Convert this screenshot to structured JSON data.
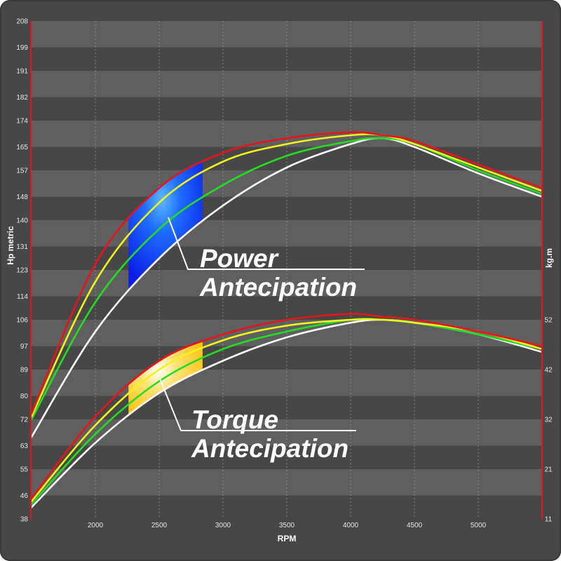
{
  "colors": {
    "frame_bg": "#474747",
    "band_light": "#5f5f5f",
    "band_dark": "#474747",
    "axis_red": "#e8141c",
    "grid": "#9a9a9a",
    "white": "#ffffff",
    "green": "#22dd22",
    "yellow": "#f2f21c",
    "red": "#e8141c",
    "power_fill": "#1f3fff",
    "torque_fill": "#ffcc1a"
  },
  "chart_data": {
    "type": "line",
    "title": "",
    "xlabel": "RPM",
    "ylabel_left": "Hp metric",
    "ylabel_right": "kg.m",
    "xlim": [
      1500,
      5500
    ],
    "ylim_left": [
      38,
      208
    ],
    "x_ticks": [
      2000,
      2500,
      3000,
      3500,
      4000,
      4500,
      5000
    ],
    "y_left_ticks": [
      "38",
      "46",
      "55",
      "63",
      "72",
      "80",
      "89",
      "97",
      "106",
      "114",
      "123",
      "131",
      "140",
      "148",
      "157",
      "165",
      "174",
      "182",
      "191",
      "199",
      "208"
    ],
    "y_right_ticks": [
      "11",
      "21",
      "32",
      "42",
      "52"
    ],
    "y_right_positions_hp": [
      38,
      55,
      72,
      89,
      106
    ],
    "grid": "vertical dashed lines, horizontal alternating bands",
    "curve_groups": [
      {
        "name": "power",
        "series": [
          {
            "color": "white",
            "x": [
              1500,
              2000,
              2500,
              3000,
              3500,
              4000,
              4250,
              4500,
              5000,
              5500
            ],
            "y": [
              66,
              102,
              127,
              145,
              158,
              166,
              168,
              165,
              156,
              148
            ]
          },
          {
            "color": "green",
            "x": [
              1500,
              2000,
              2500,
              3000,
              3500,
              4000,
              4250,
              4500,
              5000,
              5500
            ],
            "y": [
              72,
              112,
              137,
              152,
              162,
              167,
              168,
              166,
              157,
              149
            ]
          },
          {
            "color": "yellow",
            "x": [
              1500,
              2000,
              2500,
              3000,
              3500,
              4000,
              4250,
              4500,
              5000,
              5500
            ],
            "y": [
              73,
              119,
              146,
              160,
              166,
              169,
              169,
              166,
              158,
              150
            ]
          },
          {
            "color": "red",
            "x": [
              1500,
              2000,
              2500,
              3000,
              3500,
              4000,
              4250,
              4500,
              5000,
              5500
            ],
            "y": [
              74,
              125,
              151,
              163,
              168,
              170,
              169,
              167,
              159,
              151
            ]
          }
        ]
      },
      {
        "name": "torque",
        "series": [
          {
            "color": "white",
            "x": [
              1500,
              2000,
              2500,
              3000,
              3500,
              4000,
              4250,
              4500,
              5000,
              5500
            ],
            "y": [
              42,
              64,
              81,
              92,
              100,
              105,
              106,
              105,
              101,
              95
            ]
          },
          {
            "color": "green",
            "x": [
              1500,
              2000,
              2500,
              3000,
              3500,
              4000,
              4250,
              4500,
              5000,
              5500
            ],
            "y": [
              43,
              67,
              85,
              96,
              102,
              106,
              106,
              105,
              101,
              96
            ]
          },
          {
            "color": "yellow",
            "x": [
              1500,
              2000,
              2500,
              3000,
              3500,
              4000,
              4250,
              4500,
              5000,
              5500
            ],
            "y": [
              44,
              70,
              89,
              99,
              104,
              106,
              106,
              105,
              102,
              96
            ]
          },
          {
            "color": "red",
            "x": [
              1500,
              2000,
              2500,
              3000,
              3500,
              4000,
              4250,
              4500,
              5000,
              5500
            ],
            "y": [
              45,
              73,
              92,
              101,
              106,
              108,
              107,
              106,
              102,
              97
            ]
          }
        ]
      }
    ],
    "highlight_regions": [
      {
        "group": "power",
        "rpm_range": [
          2260,
          2840
        ],
        "between": [
          "white",
          "red"
        ]
      },
      {
        "group": "torque",
        "rpm_range": [
          2260,
          2840
        ],
        "between": [
          "white",
          "red"
        ]
      }
    ],
    "annotations": [
      {
        "lines": [
          "Power",
          "Antecipation"
        ]
      },
      {
        "lines": [
          "Torque",
          "Antecipation"
        ]
      }
    ]
  }
}
